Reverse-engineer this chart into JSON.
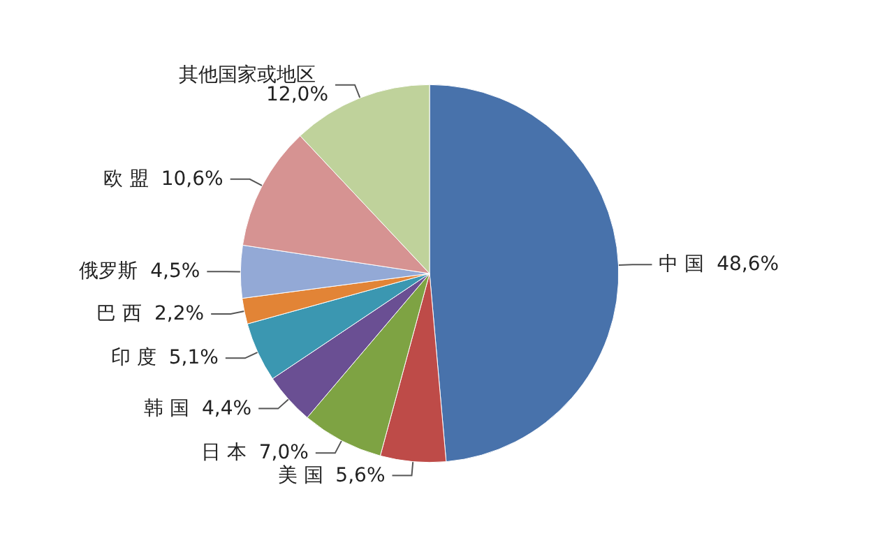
{
  "chart_data": {
    "type": "pie",
    "categories": [
      "中 国",
      "美 国",
      "日 本",
      "韩 国",
      "印 度",
      "巴 西",
      "俄罗斯",
      "欧 盟",
      "其他国家或地区"
    ],
    "values": [
      48.6,
      5.6,
      7.0,
      4.4,
      5.1,
      2.2,
      4.5,
      10.6,
      12.0
    ],
    "value_labels": [
      "48,6%",
      "5,6%",
      "7,0%",
      "4,4%",
      "5,1%",
      "2,2%",
      "4,5%",
      "10,6%",
      "12,0%"
    ],
    "colors": [
      "#4872ab",
      "#be4b48",
      "#7ea343",
      "#6a4f93",
      "#3b97b1",
      "#e28436",
      "#93a9d6",
      "#d69392",
      "#bfd29b"
    ],
    "legend": false
  }
}
